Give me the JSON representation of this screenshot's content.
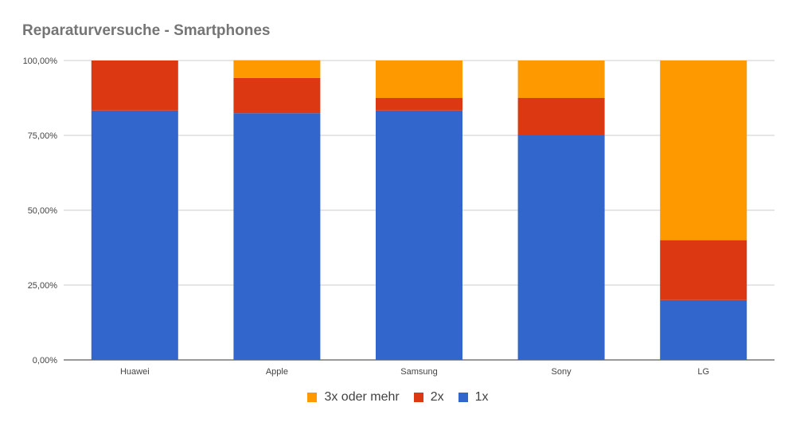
{
  "chart_data": {
    "type": "bar",
    "stacked": true,
    "title": "Reparaturversuche - Smartphones",
    "xlabel": "",
    "ylabel": "",
    "ylim": [
      0,
      1
    ],
    "y_ticks": [
      "0,00%",
      "25,00%",
      "50,00%",
      "75,00%",
      "100,00%"
    ],
    "grid": true,
    "legend_position": "bottom",
    "categories": [
      "Huawei",
      "Apple",
      "Samsung",
      "Sony",
      "LG"
    ],
    "series": [
      {
        "name": "1x",
        "color": "#3366cc",
        "values": [
          0.833,
          0.824,
          0.833,
          0.75,
          0.2
        ]
      },
      {
        "name": "2x",
        "color": "#dc3912",
        "values": [
          0.167,
          0.118,
          0.042,
          0.125,
          0.2
        ]
      },
      {
        "name": "3x oder mehr",
        "color": "#ff9900",
        "values": [
          0.0,
          0.059,
          0.125,
          0.125,
          0.6
        ]
      }
    ],
    "legend": [
      {
        "name": "3x oder mehr",
        "color": "#ff9900"
      },
      {
        "name": "2x",
        "color": "#dc3912"
      },
      {
        "name": "1x",
        "color": "#3366cc"
      }
    ]
  }
}
